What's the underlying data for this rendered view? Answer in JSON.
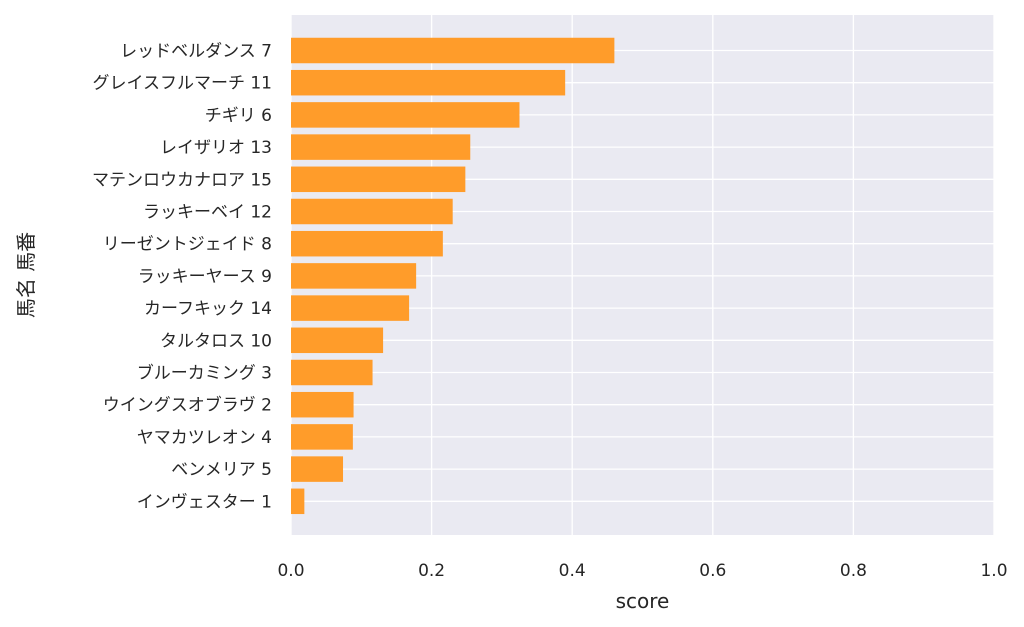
{
  "chart_data": {
    "type": "bar",
    "orientation": "horizontal",
    "title": "",
    "xlabel": "score",
    "ylabel": "馬名 馬番",
    "xlim": [
      0,
      1.0
    ],
    "x_ticks": [
      "0.0",
      "0.2",
      "0.4",
      "0.6",
      "0.8",
      "1.0"
    ],
    "grid": true,
    "legend": "none",
    "bar_color": "#ff9c2a",
    "background_color": "#eaeaf2",
    "categories": [
      "レッドベルダンス 7",
      "グレイスフルマーチ 11",
      "チギリ 6",
      "レイザリオ 13",
      "マテンロウカナロア 15",
      "ラッキーベイ 12",
      "リーゼントジェイド 8",
      "ラッキーヤース 9",
      "カーフキック 14",
      "タルタロス 10",
      "ブルーカミング 3",
      "ウイングスオブラヴ 2",
      "ヤマカツレオン 4",
      "ベンメリア 5",
      "インヴェスター 1"
    ],
    "values": [
      0.46,
      0.39,
      0.325,
      0.255,
      0.248,
      0.23,
      0.216,
      0.178,
      0.168,
      0.131,
      0.116,
      0.089,
      0.088,
      0.074,
      0.019
    ]
  }
}
